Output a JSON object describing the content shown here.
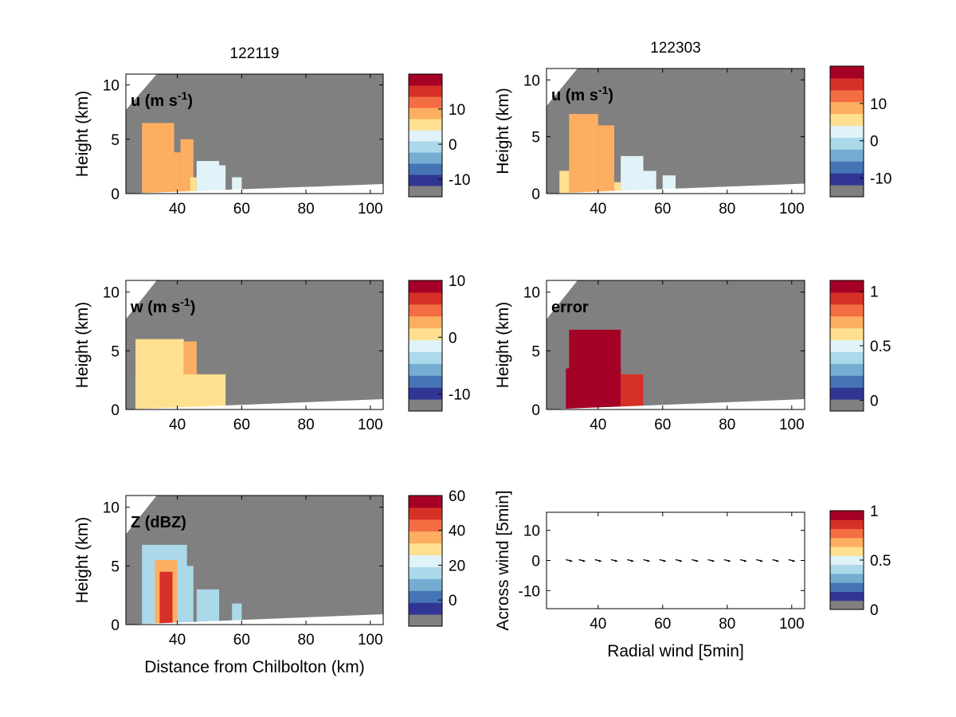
{
  "figure": {
    "column_titles": [
      "122119",
      "122303"
    ],
    "colormap": [
      "#808080",
      "#313695",
      "#4575b4",
      "#74add1",
      "#abd9e9",
      "#e0f3f8",
      "#fee090",
      "#fdae61",
      "#f46d43",
      "#d73027",
      "#a50026"
    ]
  },
  "chart_data": [
    {
      "type": "heatmap",
      "panel": "u-left",
      "title": "122119",
      "field_label": "u (m s-1)",
      "ylabel": "Height (km)",
      "xlabel": "",
      "xlim": [
        24,
        104
      ],
      "ylim": [
        0,
        11
      ],
      "xticks": [
        "40",
        "60",
        "80",
        "100"
      ],
      "yticks": [
        "0",
        "5",
        "10"
      ],
      "colorbar": {
        "range": [
          -15,
          20
        ],
        "ticks": [
          "10",
          "0",
          "-10"
        ],
        "tick_values": [
          10,
          0,
          -10
        ]
      },
      "echoes": [
        {
          "x0": 29,
          "x1": 39,
          "top": 6.5,
          "level": 0.7
        },
        {
          "x0": 39,
          "x1": 41,
          "top": 3.8,
          "level": 0.62
        },
        {
          "x0": 41,
          "x1": 45,
          "top": 5.0,
          "level": 0.7
        },
        {
          "x0": 44,
          "x1": 46,
          "top": 1.5,
          "level": 0.5
        },
        {
          "x0": 46,
          "x1": 53,
          "top": 3.0,
          "level": 0.45
        },
        {
          "x0": 52,
          "x1": 55,
          "top": 2.6,
          "level": 0.42
        },
        {
          "x0": 57,
          "x1": 60,
          "top": 1.5,
          "level": 0.45
        }
      ]
    },
    {
      "type": "heatmap",
      "panel": "u-right",
      "title": "122303",
      "field_label": "u (m s-1)",
      "ylabel": "Height (km)",
      "xlabel": "",
      "xlim": [
        24,
        104
      ],
      "ylim": [
        0,
        11
      ],
      "xticks": [
        "40",
        "60",
        "80",
        "100"
      ],
      "yticks": [
        "0",
        "5",
        "10"
      ],
      "colorbar": {
        "range": [
          -15,
          20
        ],
        "ticks": [
          "10",
          "0",
          "-10"
        ],
        "tick_values": [
          10,
          0,
          -10
        ]
      },
      "echoes": [
        {
          "x0": 28,
          "x1": 32,
          "top": 2.0,
          "level": 0.55
        },
        {
          "x0": 31,
          "x1": 40,
          "top": 7.0,
          "level": 0.7
        },
        {
          "x0": 40,
          "x1": 45,
          "top": 6.0,
          "level": 0.68
        },
        {
          "x0": 45,
          "x1": 47,
          "top": 1.0,
          "level": 0.5
        },
        {
          "x0": 47,
          "x1": 54,
          "top": 3.3,
          "level": 0.45
        },
        {
          "x0": 54,
          "x1": 58,
          "top": 2.0,
          "level": 0.42
        },
        {
          "x0": 60,
          "x1": 64,
          "top": 1.6,
          "level": 0.45
        }
      ]
    },
    {
      "type": "heatmap",
      "panel": "w-left",
      "title": "",
      "field_label": "w (m s-1)",
      "ylabel": "Height (km)",
      "xlabel": "",
      "xlim": [
        24,
        104
      ],
      "ylim": [
        0,
        11
      ],
      "xticks": [
        "40",
        "60",
        "80",
        "100"
      ],
      "yticks": [
        "0",
        "5",
        "10"
      ],
      "colorbar": {
        "range": [
          -13,
          10
        ],
        "ticks": [
          "10",
          "0",
          "-10"
        ],
        "tick_values": [
          10,
          0,
          -10
        ]
      },
      "echoes": [
        {
          "x0": 27,
          "x1": 42,
          "top": 6.0,
          "level": 0.6
        },
        {
          "x0": 42,
          "x1": 46,
          "top": 5.8,
          "level": 0.62
        },
        {
          "x0": 27,
          "x1": 55,
          "top": 3.0,
          "level": 0.6
        }
      ]
    },
    {
      "type": "heatmap",
      "panel": "error-right",
      "title": "",
      "field_label": "error",
      "ylabel": "Height (km)",
      "xlabel": "",
      "xlim": [
        24,
        104
      ],
      "ylim": [
        0,
        11
      ],
      "xticks": [
        "40",
        "60",
        "80",
        "100"
      ],
      "yticks": [
        "0",
        "5",
        "10"
      ],
      "colorbar": {
        "range": [
          -0.1,
          1.1
        ],
        "ticks": [
          "1",
          "0.5",
          "0"
        ],
        "tick_values": [
          1,
          0.5,
          0
        ]
      },
      "echoes": [
        {
          "x0": 31,
          "x1": 47,
          "top": 6.8,
          "level": 0.95
        },
        {
          "x0": 30,
          "x1": 47,
          "top": 3.5,
          "level": 0.95
        },
        {
          "x0": 47,
          "x1": 54,
          "top": 3.0,
          "level": 0.93
        }
      ]
    },
    {
      "type": "heatmap",
      "panel": "z-left",
      "title": "",
      "field_label": "Z (dBZ)",
      "ylabel": "Height (km)",
      "xlabel": "Distance from Chilbolton (km)",
      "xlim": [
        24,
        104
      ],
      "ylim": [
        0,
        11
      ],
      "xticks": [
        "40",
        "60",
        "80",
        "100"
      ],
      "yticks": [
        "0",
        "5",
        "10"
      ],
      "colorbar": {
        "range": [
          -15,
          60
        ],
        "ticks": [
          "60",
          "40",
          "20",
          "0"
        ],
        "tick_values": [
          60,
          40,
          20,
          0
        ]
      },
      "echoes": [
        {
          "x0": 29,
          "x1": 43,
          "top": 6.8,
          "level": 0.35
        },
        {
          "x0": 33,
          "x1": 40,
          "top": 5.5,
          "level": 0.62
        },
        {
          "x0": 34.5,
          "x1": 38.5,
          "top": 4.5,
          "level": 0.85
        },
        {
          "x0": 40,
          "x1": 45,
          "top": 5.0,
          "level": 0.35
        },
        {
          "x0": 46,
          "x1": 53,
          "top": 3.0,
          "level": 0.3
        },
        {
          "x0": 57,
          "x1": 60,
          "top": 1.8,
          "level": 0.3
        }
      ]
    },
    {
      "type": "scatter",
      "panel": "wind-vectors",
      "title": "",
      "xlabel": "Radial wind [5min]",
      "ylabel": "Across wind [5min]",
      "xlim": [
        24,
        104
      ],
      "ylim": [
        -16,
        16
      ],
      "xticks": [
        "40",
        "60",
        "80",
        "100"
      ],
      "yticks": [
        "10",
        "0",
        "-10"
      ],
      "colorbar": {
        "range": [
          0,
          1
        ],
        "ticks": [
          "1",
          "0.5",
          "0"
        ],
        "tick_values": [
          1,
          0.5,
          0
        ]
      },
      "x": [
        31,
        35,
        40,
        45,
        50,
        55,
        60,
        65,
        70,
        75,
        80,
        85,
        90,
        95,
        100
      ],
      "y": [
        0,
        0,
        0,
        0,
        0,
        0,
        0,
        0,
        0,
        0,
        0,
        0,
        0,
        0,
        0
      ]
    }
  ]
}
